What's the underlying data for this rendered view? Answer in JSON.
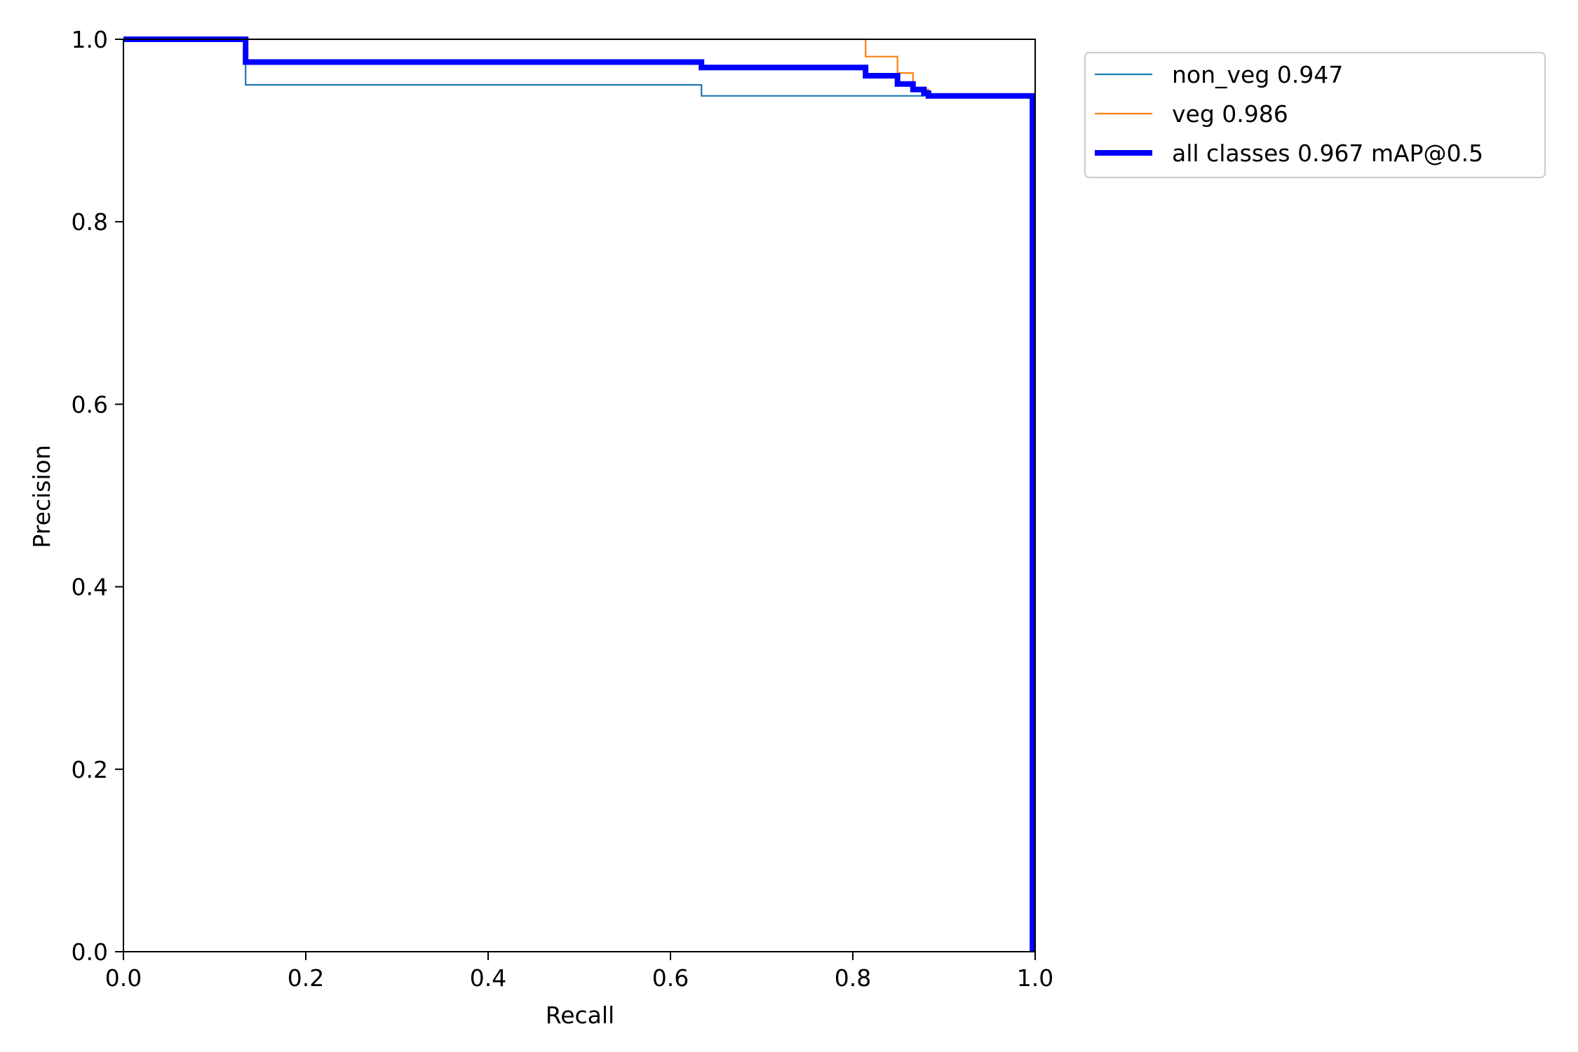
{
  "chart_data": {
    "type": "line",
    "title": "",
    "xlabel": "Recall",
    "ylabel": "Precision",
    "xlim": [
      0.0,
      1.0
    ],
    "ylim": [
      0.0,
      1.0
    ],
    "xticks": [
      "0.0",
      "0.2",
      "0.4",
      "0.6",
      "0.8",
      "1.0"
    ],
    "yticks": [
      "0.0",
      "0.2",
      "0.4",
      "0.6",
      "0.8",
      "1.0"
    ],
    "grid": false,
    "legend_position": "outside-top-right",
    "series": [
      {
        "name": "non_veg 0.947",
        "color": "#1f77b4",
        "linewidth": "thin",
        "step_points": [
          [
            0.0,
            1.0
          ],
          [
            0.134,
            1.0
          ],
          [
            0.134,
            0.95
          ],
          [
            0.634,
            0.95
          ],
          [
            0.634,
            0.938
          ],
          [
            0.997,
            0.938
          ],
          [
            0.997,
            0.0
          ]
        ]
      },
      {
        "name": "veg 0.986",
        "color": "#ff7f0e",
        "linewidth": "thin",
        "step_points": [
          [
            0.0,
            1.0
          ],
          [
            0.814,
            1.0
          ],
          [
            0.814,
            0.981
          ],
          [
            0.849,
            0.981
          ],
          [
            0.849,
            0.963
          ],
          [
            0.866,
            0.963
          ],
          [
            0.866,
            0.945
          ],
          [
            0.883,
            0.945
          ],
          [
            0.883,
            0.938
          ],
          [
            0.997,
            0.938
          ],
          [
            0.997,
            0.0
          ]
        ]
      },
      {
        "name": "all classes 0.967 mAP@0.5",
        "color": "#0000ff",
        "linewidth": "thick",
        "step_points": [
          [
            0.0,
            1.0
          ],
          [
            0.134,
            1.0
          ],
          [
            0.134,
            0.975
          ],
          [
            0.634,
            0.975
          ],
          [
            0.634,
            0.969
          ],
          [
            0.814,
            0.969
          ],
          [
            0.814,
            0.96
          ],
          [
            0.849,
            0.96
          ],
          [
            0.849,
            0.951
          ],
          [
            0.866,
            0.951
          ],
          [
            0.866,
            0.945
          ],
          [
            0.878,
            0.945
          ],
          [
            0.878,
            0.941
          ],
          [
            0.883,
            0.941
          ],
          [
            0.883,
            0.938
          ],
          [
            0.997,
            0.938
          ],
          [
            0.997,
            0.0
          ]
        ]
      }
    ]
  }
}
